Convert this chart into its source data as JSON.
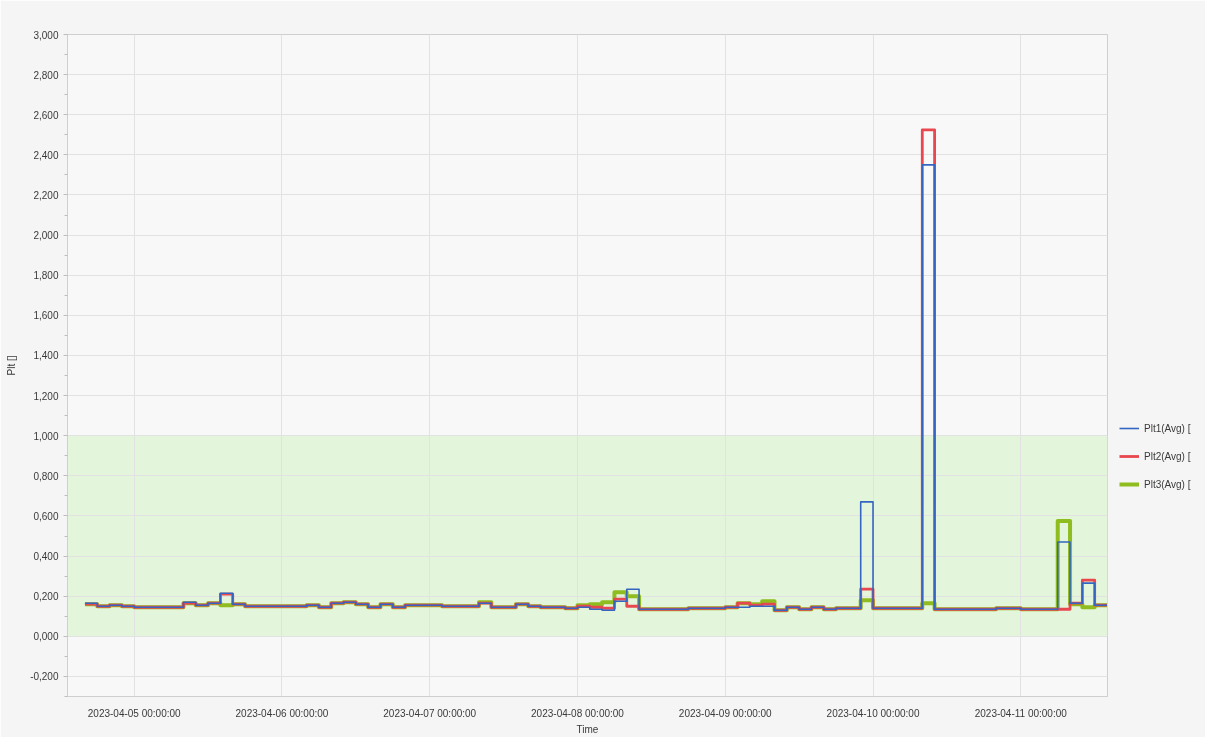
{
  "chart_data": {
    "type": "step",
    "xlabel": "Time",
    "ylabel": "Plt []",
    "xlim": [
      "2023-04-04T13:10",
      "2023-04-11T14:05"
    ],
    "ylim": [
      -0.3,
      3.0
    ],
    "xticks": [
      {
        "value": "2023-04-05",
        "label": "2023-04-05 00:00:00"
      },
      {
        "value": "2023-04-06",
        "label": "2023-04-06 00:00:00"
      },
      {
        "value": "2023-04-07",
        "label": "2023-04-07 00:00:00"
      },
      {
        "value": "2023-04-08",
        "label": "2023-04-08 00:00:00"
      },
      {
        "value": "2023-04-09",
        "label": "2023-04-09 00:00:00"
      },
      {
        "value": "2023-04-10",
        "label": "2023-04-10 00:00:00"
      },
      {
        "value": "2023-04-11",
        "label": "2023-04-11 00:00:00"
      }
    ],
    "yticks": [
      {
        "value": -0.3,
        "label": null
      },
      {
        "value": -0.2,
        "label": "-0,200"
      },
      {
        "value": -0.1,
        "label": null
      },
      {
        "value": 0,
        "label": "0,000"
      },
      {
        "value": 0.1,
        "label": null
      },
      {
        "value": 0.2,
        "label": "0,200"
      },
      {
        "value": 0.3,
        "label": null
      },
      {
        "value": 0.4,
        "label": "0,400"
      },
      {
        "value": 0.5,
        "label": null
      },
      {
        "value": 0.6,
        "label": "0,600"
      },
      {
        "value": 0.7,
        "label": null
      },
      {
        "value": 0.8,
        "label": "0,800"
      },
      {
        "value": 0.9,
        "label": null
      },
      {
        "value": 1.0,
        "label": "1,000"
      },
      {
        "value": 1.1,
        "label": null
      },
      {
        "value": 1.2,
        "label": "1,200"
      },
      {
        "value": 1.3,
        "label": null
      },
      {
        "value": 1.4,
        "label": "1,400"
      },
      {
        "value": 1.5,
        "label": null
      },
      {
        "value": 1.6,
        "label": "1,600"
      },
      {
        "value": 1.7,
        "label": null
      },
      {
        "value": 1.8,
        "label": "1,800"
      },
      {
        "value": 1.9,
        "label": null
      },
      {
        "value": 2.0,
        "label": "2,000"
      },
      {
        "value": 2.1,
        "label": null
      },
      {
        "value": 2.2,
        "label": "2,200"
      },
      {
        "value": 2.3,
        "label": null
      },
      {
        "value": 2.4,
        "label": "2,400"
      },
      {
        "value": 2.5,
        "label": null
      },
      {
        "value": 2.6,
        "label": "2,600"
      },
      {
        "value": 2.7,
        "label": null
      },
      {
        "value": 2.8,
        "label": "2,800"
      },
      {
        "value": 2.9,
        "label": null
      },
      {
        "value": 3.0,
        "label": "3,000"
      }
    ],
    "grid": true,
    "legend": "right",
    "bands": [
      {
        "axis": "y",
        "from": 0,
        "to": 1,
        "color": "#e3f5da"
      }
    ],
    "x": [
      "2023-04-04T16:00",
      "2023-04-04T18:00",
      "2023-04-04T20:00",
      "2023-04-04T22:00",
      "2023-04-05T00:00",
      "2023-04-05T02:00",
      "2023-04-05T04:00",
      "2023-04-05T08:00",
      "2023-04-05T10:00",
      "2023-04-05T12:00",
      "2023-04-05T14:00",
      "2023-04-05T16:00",
      "2023-04-05T18:00",
      "2023-04-05T22:00",
      "2023-04-06T02:00",
      "2023-04-06T04:00",
      "2023-04-06T06:00",
      "2023-04-06T08:00",
      "2023-04-06T10:00",
      "2023-04-06T12:00",
      "2023-04-06T14:00",
      "2023-04-06T16:00",
      "2023-04-06T18:00",
      "2023-04-06T20:00",
      "2023-04-07T00:00",
      "2023-04-07T02:00",
      "2023-04-07T08:00",
      "2023-04-07T10:00",
      "2023-04-07T14:00",
      "2023-04-07T16:00",
      "2023-04-07T18:00",
      "2023-04-07T22:00",
      "2023-04-08T00:00",
      "2023-04-08T02:00",
      "2023-04-08T04:00",
      "2023-04-08T06:00",
      "2023-04-08T08:00",
      "2023-04-08T10:00",
      "2023-04-08T16:00",
      "2023-04-08T18:00",
      "2023-04-09T00:00",
      "2023-04-09T02:00",
      "2023-04-09T04:00",
      "2023-04-09T06:00",
      "2023-04-09T08:00",
      "2023-04-09T10:00",
      "2023-04-09T12:00",
      "2023-04-09T14:00",
      "2023-04-09T16:00",
      "2023-04-09T18:00",
      "2023-04-09T20:00",
      "2023-04-09T22:00",
      "2023-04-10T00:00",
      "2023-04-10T08:00",
      "2023-04-10T10:00",
      "2023-04-10T20:00",
      "2023-04-11T00:00",
      "2023-04-11T06:00",
      "2023-04-11T08:00",
      "2023-04-11T10:00",
      "2023-04-11T12:00",
      "2023-04-11T14:00"
    ],
    "series": [
      {
        "name": "Plt1(Avg) [",
        "color": "#3465c0",
        "values": [
          0.165,
          0.15,
          0.155,
          0.15,
          0.145,
          0.145,
          0.145,
          0.17,
          0.155,
          0.165,
          0.215,
          0.16,
          0.15,
          0.15,
          0.15,
          0.155,
          0.145,
          0.165,
          0.17,
          0.16,
          0.145,
          0.16,
          0.145,
          0.155,
          0.155,
          0.15,
          0.165,
          0.145,
          0.16,
          0.15,
          0.145,
          0.14,
          0.145,
          0.135,
          0.13,
          0.175,
          0.235,
          0.135,
          0.135,
          0.14,
          0.145,
          0.145,
          0.15,
          0.15,
          0.13,
          0.145,
          0.135,
          0.145,
          0.135,
          0.14,
          0.14,
          0.67,
          0.14,
          2.35,
          0.135,
          0.14,
          0.135,
          0.47,
          0.165,
          0.265,
          0.155,
          0.155
        ]
      },
      {
        "name": "Plt2(Avg) [",
        "color": "#e8474f",
        "values": [
          0.16,
          0.15,
          0.155,
          0.15,
          0.145,
          0.145,
          0.145,
          0.165,
          0.155,
          0.165,
          0.21,
          0.16,
          0.15,
          0.15,
          0.15,
          0.155,
          0.145,
          0.165,
          0.17,
          0.16,
          0.145,
          0.16,
          0.145,
          0.155,
          0.155,
          0.15,
          0.165,
          0.145,
          0.16,
          0.15,
          0.145,
          0.14,
          0.15,
          0.145,
          0.14,
          0.185,
          0.15,
          0.135,
          0.135,
          0.14,
          0.145,
          0.165,
          0.155,
          0.16,
          0.13,
          0.145,
          0.135,
          0.145,
          0.135,
          0.14,
          0.14,
          0.235,
          0.14,
          2.525,
          0.135,
          0.14,
          0.135,
          0.135,
          0.165,
          0.28,
          0.155,
          0.155
        ]
      },
      {
        "name": "Plt3(Avg) [",
        "color": "#8fbc1f",
        "values": [
          0.16,
          0.15,
          0.155,
          0.15,
          0.145,
          0.145,
          0.145,
          0.165,
          0.155,
          0.165,
          0.155,
          0.16,
          0.15,
          0.15,
          0.15,
          0.155,
          0.145,
          0.165,
          0.17,
          0.16,
          0.145,
          0.16,
          0.145,
          0.155,
          0.155,
          0.15,
          0.17,
          0.145,
          0.16,
          0.15,
          0.145,
          0.14,
          0.155,
          0.16,
          0.17,
          0.22,
          0.2,
          0.135,
          0.135,
          0.14,
          0.145,
          0.165,
          0.16,
          0.175,
          0.13,
          0.145,
          0.135,
          0.145,
          0.135,
          0.14,
          0.14,
          0.18,
          0.14,
          0.165,
          0.135,
          0.14,
          0.135,
          0.575,
          0.16,
          0.145,
          0.155,
          0.155
        ]
      }
    ]
  }
}
